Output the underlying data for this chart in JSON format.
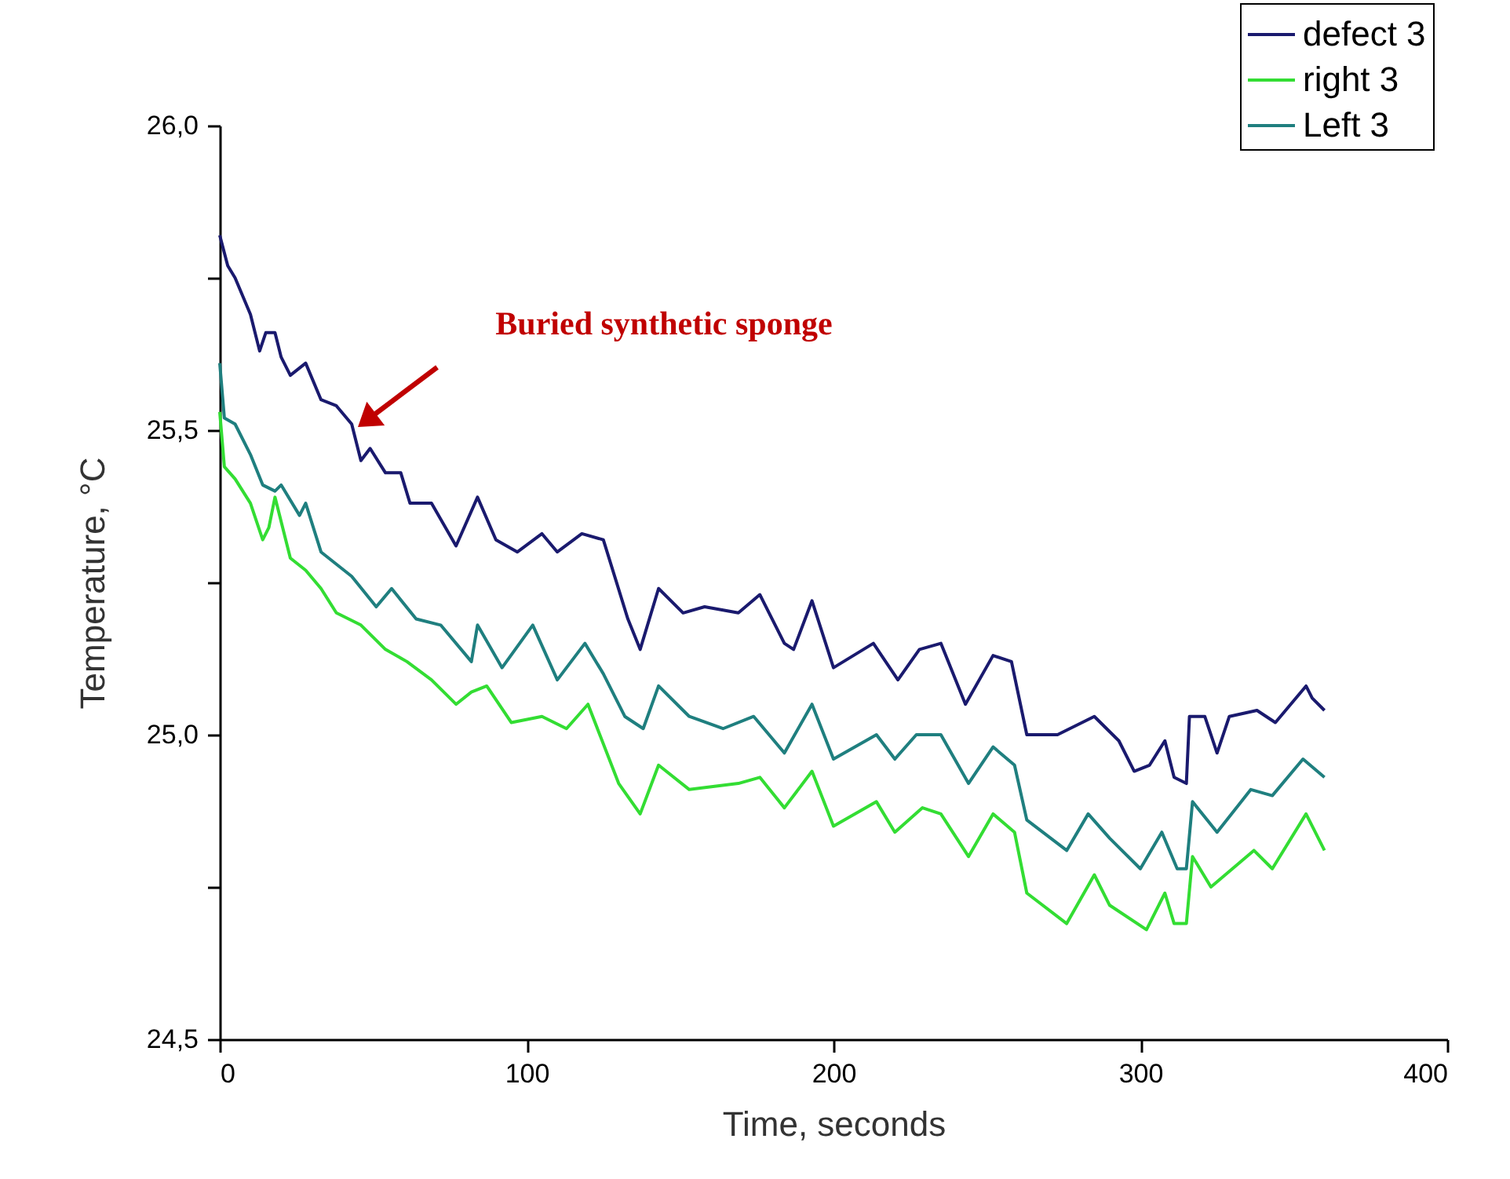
{
  "chart_data": {
    "type": "line",
    "xlabel": "Time, seconds",
    "ylabel": "Temperature, °C",
    "xlim": [
      0,
      400
    ],
    "xticks": [
      0,
      100,
      200,
      300,
      400
    ],
    "ylim": [
      24.5,
      26.0
    ],
    "yticks": [
      {
        "value": 24.5,
        "label": "24,5"
      },
      {
        "value": 24.75,
        "label": null
      },
      {
        "value": 25.0,
        "label": "25,0"
      },
      {
        "value": 25.25,
        "label": null
      },
      {
        "value": 25.5,
        "label": "25,5"
      },
      {
        "value": 25.75,
        "label": null
      },
      {
        "value": 26.0,
        "label": "26,0"
      }
    ],
    "grid": false,
    "legend": "top right",
    "marker": "none",
    "line_style": "solid",
    "annotations": [
      "Buried synthetic sponge"
    ],
    "series": [
      {
        "name": "defect 3",
        "color": "#1a1a6e",
        "x": [
          0,
          2.6,
          5,
          10,
          13,
          15,
          18,
          20,
          23,
          28,
          33,
          38,
          43,
          46,
          49,
          54,
          59,
          62,
          69,
          77,
          84,
          90,
          97,
          105,
          110,
          118,
          125,
          133,
          137,
          143,
          151,
          158,
          169,
          176,
          184,
          187,
          193,
          200,
          213,
          221,
          228,
          235,
          243,
          252,
          258,
          263,
          273,
          285,
          293,
          298,
          303,
          308,
          311,
          315,
          316,
          321,
          325,
          329,
          338,
          344,
          349,
          354,
          356,
          360
        ],
        "values": [
          25.82,
          25.77,
          25.75,
          25.69,
          25.63,
          25.66,
          25.66,
          25.62,
          25.59,
          25.61,
          25.55,
          25.54,
          25.51,
          25.45,
          25.47,
          25.43,
          25.43,
          25.38,
          25.38,
          25.31,
          25.39,
          25.32,
          25.3,
          25.33,
          25.3,
          25.33,
          25.32,
          25.19,
          25.14,
          25.24,
          25.2,
          25.21,
          25.2,
          25.23,
          25.15,
          25.14,
          25.22,
          25.11,
          25.15,
          25.09,
          25.14,
          25.15,
          25.05,
          25.13,
          25.12,
          25.0,
          25.0,
          25.03,
          24.99,
          24.94,
          24.95,
          24.99,
          24.93,
          24.92,
          25.03,
          25.03,
          24.97,
          25.03,
          25.04,
          25.02,
          25.05,
          25.08,
          25.06,
          25.04
        ]
      },
      {
        "name": "right 3",
        "color": "#33dd33",
        "x": [
          0,
          1.5,
          5,
          10,
          14,
          16,
          18,
          23,
          28,
          33,
          38,
          46,
          54,
          61,
          69,
          77,
          82,
          87,
          95,
          105,
          113,
          120,
          130,
          137,
          143,
          153,
          169,
          176,
          184,
          193,
          200,
          214,
          220,
          229,
          235,
          244,
          252,
          259,
          263,
          276,
          285,
          290,
          302,
          308,
          311,
          315,
          317,
          323,
          337,
          343,
          354,
          360
        ],
        "values": [
          25.53,
          25.44,
          25.42,
          25.38,
          25.32,
          25.34,
          25.39,
          25.29,
          25.27,
          25.24,
          25.2,
          25.18,
          25.14,
          25.12,
          25.09,
          25.05,
          25.07,
          25.08,
          25.02,
          25.03,
          25.01,
          25.05,
          24.92,
          24.87,
          24.95,
          24.91,
          24.92,
          24.93,
          24.88,
          24.94,
          24.85,
          24.89,
          24.84,
          24.88,
          24.87,
          24.8,
          24.87,
          24.84,
          24.74,
          24.69,
          24.77,
          24.72,
          24.68,
          24.74,
          24.69,
          24.69,
          24.8,
          24.75,
          24.81,
          24.78,
          24.87,
          24.81
        ]
      },
      {
        "name": "Left 3",
        "color": "#1f7f7f",
        "x": [
          0,
          1.5,
          5,
          10,
          14,
          18,
          20,
          26,
          28,
          33,
          38,
          43,
          51,
          56,
          64,
          72,
          82,
          84,
          92,
          102,
          110,
          119,
          125,
          132,
          138,
          143,
          153,
          164,
          174,
          184,
          193,
          200,
          214,
          220,
          227,
          235,
          244,
          252,
          259,
          263,
          276,
          283,
          290,
          300,
          307,
          312,
          315,
          317,
          325,
          336,
          343,
          353,
          360
        ],
        "values": [
          25.61,
          25.52,
          25.51,
          25.46,
          25.41,
          25.4,
          25.41,
          25.36,
          25.38,
          25.3,
          25.28,
          25.26,
          25.21,
          25.24,
          25.19,
          25.18,
          25.12,
          25.18,
          25.11,
          25.18,
          25.09,
          25.15,
          25.1,
          25.03,
          25.01,
          25.08,
          25.03,
          25.01,
          25.03,
          24.97,
          25.05,
          24.96,
          25.0,
          24.96,
          25.0,
          25.0,
          24.92,
          24.98,
          24.95,
          24.86,
          24.81,
          24.87,
          24.83,
          24.78,
          24.84,
          24.78,
          24.78,
          24.89,
          24.84,
          24.91,
          24.9,
          24.96,
          24.93
        ]
      }
    ]
  }
}
